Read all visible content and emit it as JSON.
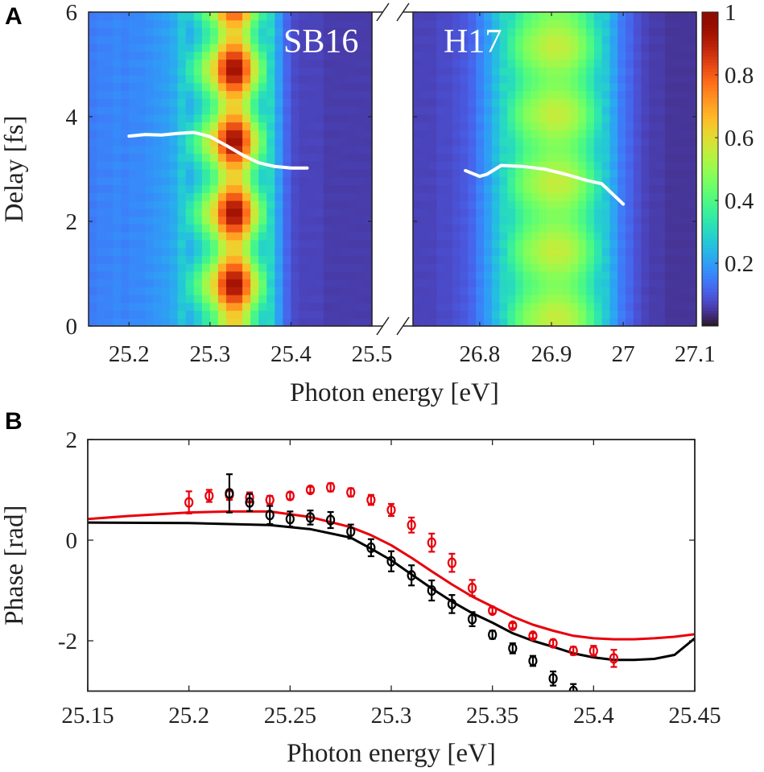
{
  "chart_data": [
    {
      "panel": "A",
      "type": "heatmap",
      "ylabel": "Delay [fs]",
      "xlabel": "Photon energy [eV]",
      "ylim": [
        0,
        6
      ],
      "yticks": [
        "0",
        "2",
        "4",
        "6"
      ],
      "colorbar": {
        "range": [
          0,
          1
        ],
        "ticks": [
          "0.2",
          "0.4",
          "0.6",
          "0.8",
          "1"
        ],
        "colormap": "turbo"
      },
      "subplots": [
        {
          "label": "SB16",
          "xlim": [
            25.15,
            25.5
          ],
          "xticks": [
            "25.2",
            "25.3",
            "25.4",
            "25.5"
          ],
          "xtick_values": [
            25.2,
            25.3,
            25.4,
            25.5
          ],
          "profile": [
            0.15,
            0.16,
            0.16,
            0.17,
            0.16,
            0.17,
            0.17,
            0.18,
            0.19,
            0.2,
            0.22,
            0.27,
            0.33,
            0.4,
            0.5,
            0.6,
            0.78,
            0.9,
            0.9,
            0.75,
            0.55,
            0.42,
            0.3,
            0.2,
            0.12,
            0.08,
            0.07,
            0.07,
            0.07,
            0.06,
            0.06,
            0.06,
            0.06,
            0.06,
            0.06
          ],
          "modulation": {
            "period_fs": 1.37,
            "phase_fs": 0.8,
            "depth": 0.17
          },
          "phase_line": {
            "x": [
              25.2,
              25.22,
              25.24,
              25.26,
              25.28,
              25.3,
              25.32,
              25.34,
              25.36,
              25.38,
              25.4,
              25.42
            ],
            "y": [
              3.63,
              3.66,
              3.65,
              3.68,
              3.7,
              3.62,
              3.45,
              3.27,
              3.12,
              3.05,
              3.02,
              3.02
            ]
          }
        },
        {
          "label": "H17",
          "xlim": [
            26.707,
            27.102
          ],
          "xticks": [
            "26.8",
            "26.9",
            "27",
            "27.1"
          ],
          "xtick_values": [
            26.8,
            26.9,
            27.0,
            27.1
          ],
          "profile": [
            0.07,
            0.07,
            0.07,
            0.08,
            0.08,
            0.09,
            0.1,
            0.12,
            0.16,
            0.2,
            0.25,
            0.3,
            0.36,
            0.42,
            0.47,
            0.5,
            0.53,
            0.55,
            0.55,
            0.54,
            0.51,
            0.46,
            0.4,
            0.33,
            0.27,
            0.21,
            0.15,
            0.12,
            0.09,
            0.07,
            0.06,
            0.06,
            0.05,
            0.05,
            0.05,
            0.05
          ],
          "modulation": {
            "period_fs": 1.3,
            "phase_fs": 0.15,
            "depth": 0.08
          },
          "phase_line": {
            "x": [
              26.78,
              26.8,
              26.81,
              26.83,
              26.86,
              26.89,
              26.92,
              26.95,
              26.97,
              27.0
            ],
            "y": [
              2.97,
              2.86,
              2.9,
              3.07,
              3.05,
              3.0,
              2.9,
              2.78,
              2.72,
              2.33
            ]
          }
        }
      ]
    },
    {
      "panel": "B",
      "type": "scatter",
      "xlabel": "Photon energy [eV]",
      "ylabel": "Phase [rad]",
      "xlim": [
        25.15,
        25.45
      ],
      "ylim": [
        -3,
        2
      ],
      "xticks": [
        "25.15",
        "25.2",
        "25.25",
        "25.3",
        "25.35",
        "25.4",
        "25.45"
      ],
      "yticks": [
        "-2",
        "0",
        "2"
      ],
      "series": [
        {
          "name": "red-data",
          "color": "#e8000b",
          "x": [
            25.2,
            25.21,
            25.22,
            25.23,
            25.24,
            25.25,
            25.26,
            25.27,
            25.28,
            25.29,
            25.3,
            25.31,
            25.32,
            25.33,
            25.34,
            25.35,
            25.36,
            25.37,
            25.38,
            25.39,
            25.4,
            25.41
          ],
          "y": [
            0.75,
            0.88,
            0.9,
            0.85,
            0.8,
            0.88,
            1.0,
            1.05,
            0.95,
            0.8,
            0.6,
            0.3,
            -0.05,
            -0.45,
            -0.95,
            -1.4,
            -1.7,
            -1.9,
            -2.05,
            -2.2,
            -2.2,
            -2.35
          ],
          "err": [
            0.22,
            0.12,
            0.1,
            0.1,
            0.08,
            0.07,
            0.06,
            0.08,
            0.08,
            0.1,
            0.12,
            0.15,
            0.18,
            0.18,
            0.16,
            0.06,
            0.05,
            0.05,
            0.07,
            0.08,
            0.1,
            0.17
          ]
        },
        {
          "name": "black-data",
          "color": "#000000",
          "x": [
            25.22,
            25.23,
            25.24,
            25.25,
            25.26,
            25.27,
            25.28,
            25.29,
            25.3,
            25.31,
            25.32,
            25.33,
            25.34,
            25.35,
            25.36,
            25.37,
            25.38,
            25.39
          ],
          "y": [
            0.93,
            0.75,
            0.5,
            0.42,
            0.45,
            0.4,
            0.17,
            -0.15,
            -0.42,
            -0.7,
            -1.0,
            -1.27,
            -1.57,
            -1.88,
            -2.15,
            -2.4,
            -2.75,
            -3.0
          ],
          "err": [
            0.38,
            0.17,
            0.18,
            0.15,
            0.14,
            0.16,
            0.14,
            0.17,
            0.2,
            0.2,
            0.2,
            0.18,
            0.14,
            0.08,
            0.1,
            0.1,
            0.14,
            0.14
          ]
        },
        {
          "name": "red-fit",
          "color": "#e8000b",
          "line": true,
          "x": [
            25.15,
            25.17,
            25.2,
            25.22,
            25.24,
            25.26,
            25.28,
            25.29,
            25.3,
            25.31,
            25.32,
            25.33,
            25.34,
            25.35,
            25.36,
            25.37,
            25.38,
            25.39,
            25.4,
            25.41,
            25.42,
            25.43,
            25.44,
            25.45
          ],
          "y": [
            0.42,
            0.48,
            0.55,
            0.57,
            0.57,
            0.46,
            0.26,
            0.1,
            -0.1,
            -0.35,
            -0.62,
            -0.88,
            -1.12,
            -1.32,
            -1.52,
            -1.68,
            -1.8,
            -1.9,
            -1.95,
            -1.97,
            -1.97,
            -1.95,
            -1.92,
            -1.87
          ]
        },
        {
          "name": "black-fit",
          "color": "#000000",
          "line": true,
          "x": [
            25.15,
            25.2,
            25.24,
            25.26,
            25.28,
            25.29,
            25.3,
            25.31,
            25.32,
            25.33,
            25.34,
            25.35,
            25.36,
            25.37,
            25.38,
            25.39,
            25.4,
            25.41,
            25.42,
            25.43,
            25.44,
            25.45
          ],
          "y": [
            0.35,
            0.34,
            0.3,
            0.22,
            0.05,
            -0.17,
            -0.4,
            -0.68,
            -0.96,
            -1.22,
            -1.45,
            -1.64,
            -1.85,
            -2.0,
            -2.12,
            -2.25,
            -2.33,
            -2.38,
            -2.38,
            -2.36,
            -2.28,
            -1.95
          ]
        }
      ]
    }
  ]
}
